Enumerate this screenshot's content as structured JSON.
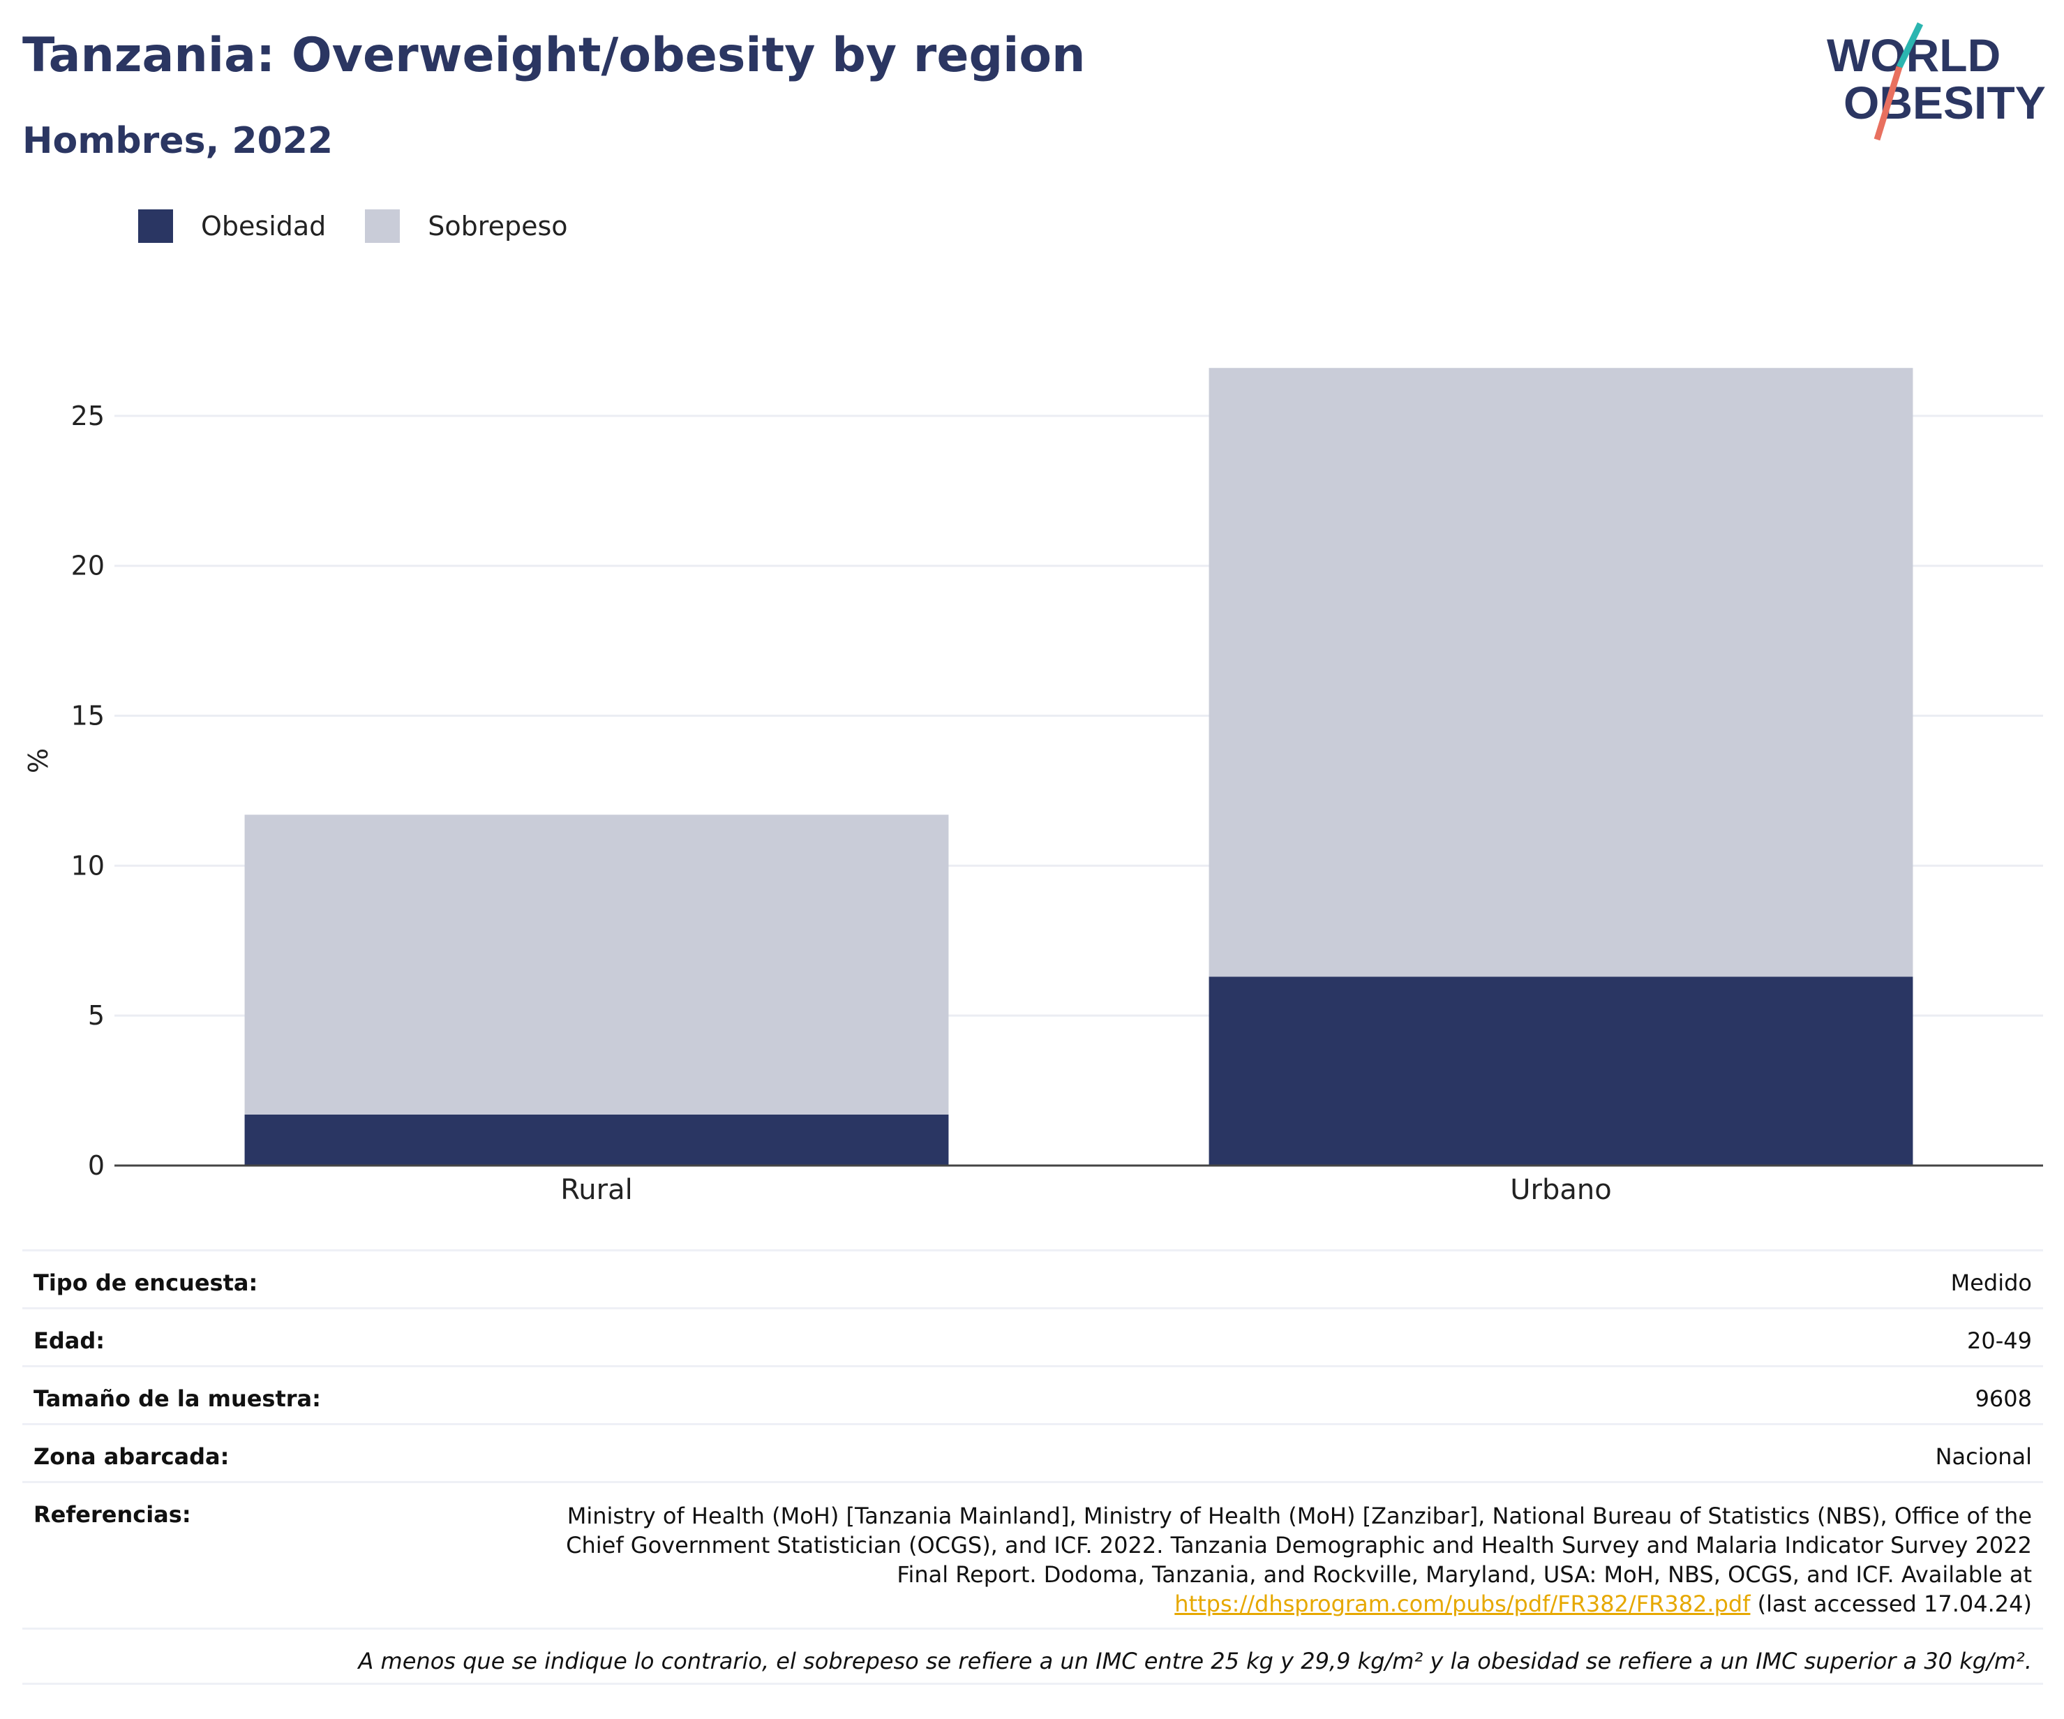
{
  "header": {
    "title": "Tanzania: Overweight/obesity by region",
    "subtitle": "Hombres, 2022",
    "logo_line1": "WORLD",
    "logo_line2": "OBESITY"
  },
  "colors": {
    "obesity": "#2a3663",
    "overweight": "#c9ccd8",
    "title": "#2b3662",
    "link": "#e6a800"
  },
  "chart_data": {
    "type": "bar",
    "stacked": true,
    "categories": [
      "Rural",
      "Urbano"
    ],
    "series": [
      {
        "name": "Obesidad",
        "values": [
          1.7,
          6.3
        ]
      },
      {
        "name": "Sobrepeso",
        "values": [
          10.0,
          20.3
        ]
      }
    ],
    "ylabel": "%",
    "ylim": [
      0,
      27
    ],
    "yticks": [
      0,
      5,
      10,
      15,
      20,
      25
    ],
    "grid": true,
    "legend": "top-left"
  },
  "info": {
    "survey_type_label": "Tipo de encuesta:",
    "survey_type_value": "Medido",
    "age_label": "Edad:",
    "age_value": "20-49",
    "sample_label": "Tamaño de la muestra:",
    "sample_value": "9608",
    "area_label": "Zona abarcada:",
    "area_value": "Nacional",
    "refs_label": "Referencias:",
    "refs_text": "Ministry of Health (MoH) [Tanzania Mainland], Ministry of Health (MoH) [Zanzibar], National Bureau of Statistics (NBS), Office of the Chief Government Statistician (OCGS), and ICF. 2022. Tanzania Demographic and Health Survey and Malaria Indicator Survey 2022 Final Report. Dodoma, Tanzania, and Rockville, Maryland, USA: MoH, NBS, OCGS, and ICF. Available at",
    "refs_link": "https://dhsprogram.com/pubs/pdf/FR382/FR382.pdf",
    "refs_suffix": " (last accessed 17.04.24)",
    "note": "A menos que se indique lo contrario, el sobrepeso se refiere a un IMC entre 25 kg y 29,9 kg/m² y la obesidad se refiere a un IMC superior a 30 kg/m²."
  }
}
